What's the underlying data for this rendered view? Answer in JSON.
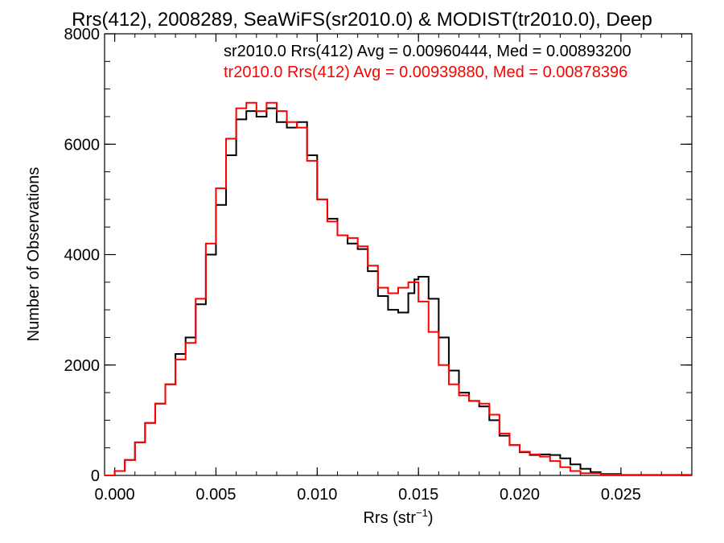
{
  "chart_data": {
    "type": "line",
    "title": "Rrs(412), 2008289, SeaWiFS(sr2010.0) & MODIST(tr2010.0), Deep",
    "xlabel": "Rrs (str",
    "xlabel_sup": "−1",
    "xlabel_close": ")",
    "ylabel": "Number of Observations",
    "xlim": [
      -0.0005,
      0.0285
    ],
    "ylim": [
      0,
      8000
    ],
    "xticks": [
      {
        "value": 0.0,
        "label": "0.000"
      },
      {
        "value": 0.005,
        "label": "0.005"
      },
      {
        "value": 0.01,
        "label": "0.010"
      },
      {
        "value": 0.015,
        "label": "0.015"
      },
      {
        "value": 0.02,
        "label": "0.020"
      },
      {
        "value": 0.025,
        "label": "0.025"
      }
    ],
    "yticks": [
      {
        "value": 0,
        "label": "0"
      },
      {
        "value": 2000,
        "label": "2000"
      },
      {
        "value": 4000,
        "label": "4000"
      },
      {
        "value": 6000,
        "label": "6000"
      },
      {
        "value": 8000,
        "label": "8000"
      }
    ],
    "legend_placement": "top-right",
    "grid": false,
    "series": [
      {
        "name": "sr2010.0 Rrs(412) Avg = 0.00960444, Med = 0.00893200",
        "color": "#000000",
        "points": [
          [
            -0.0005,
            0
          ],
          [
            0.0,
            80
          ],
          [
            0.0005,
            280
          ],
          [
            0.001,
            600
          ],
          [
            0.0015,
            950
          ],
          [
            0.002,
            1300
          ],
          [
            0.0025,
            1650
          ],
          [
            0.003,
            2200
          ],
          [
            0.0035,
            2500
          ],
          [
            0.004,
            3100
          ],
          [
            0.0045,
            4000
          ],
          [
            0.005,
            4900
          ],
          [
            0.0055,
            5800
          ],
          [
            0.006,
            6450
          ],
          [
            0.0065,
            6600
          ],
          [
            0.007,
            6500
          ],
          [
            0.0075,
            6650
          ],
          [
            0.008,
            6400
          ],
          [
            0.0085,
            6300
          ],
          [
            0.009,
            6400
          ],
          [
            0.0095,
            5800
          ],
          [
            0.01,
            5000
          ],
          [
            0.0105,
            4650
          ],
          [
            0.011,
            4350
          ],
          [
            0.0115,
            4200
          ],
          [
            0.012,
            4100
          ],
          [
            0.0125,
            3700
          ],
          [
            0.013,
            3250
          ],
          [
            0.0135,
            3000
          ],
          [
            0.014,
            2950
          ],
          [
            0.0145,
            3300
          ],
          [
            0.0148,
            3550
          ],
          [
            0.015,
            3600
          ],
          [
            0.0155,
            3200
          ],
          [
            0.016,
            2500
          ],
          [
            0.0165,
            1900
          ],
          [
            0.017,
            1500
          ],
          [
            0.0175,
            1350
          ],
          [
            0.018,
            1250
          ],
          [
            0.0185,
            1000
          ],
          [
            0.019,
            720
          ],
          [
            0.0195,
            550
          ],
          [
            0.02,
            420
          ],
          [
            0.0205,
            370
          ],
          [
            0.021,
            380
          ],
          [
            0.0215,
            370
          ],
          [
            0.022,
            310
          ],
          [
            0.0225,
            200
          ],
          [
            0.023,
            120
          ],
          [
            0.0235,
            60
          ],
          [
            0.024,
            25
          ],
          [
            0.025,
            10
          ],
          [
            0.0285,
            0
          ]
        ]
      },
      {
        "name": "tr2010.0 Rrs(412) Avg = 0.00939880, Med = 0.00878396",
        "color": "#ff0000",
        "points": [
          [
            -0.0005,
            0
          ],
          [
            0.0,
            80
          ],
          [
            0.0005,
            280
          ],
          [
            0.001,
            600
          ],
          [
            0.0015,
            950
          ],
          [
            0.002,
            1300
          ],
          [
            0.0025,
            1650
          ],
          [
            0.003,
            2100
          ],
          [
            0.0035,
            2400
          ],
          [
            0.004,
            3200
          ],
          [
            0.0045,
            4200
          ],
          [
            0.005,
            5200
          ],
          [
            0.0055,
            6100
          ],
          [
            0.006,
            6650
          ],
          [
            0.0065,
            6750
          ],
          [
            0.007,
            6600
          ],
          [
            0.0075,
            6750
          ],
          [
            0.008,
            6600
          ],
          [
            0.0085,
            6400
          ],
          [
            0.009,
            6300
          ],
          [
            0.0095,
            5700
          ],
          [
            0.01,
            5000
          ],
          [
            0.0105,
            4600
          ],
          [
            0.011,
            4350
          ],
          [
            0.0115,
            4300
          ],
          [
            0.012,
            4150
          ],
          [
            0.0125,
            3800
          ],
          [
            0.013,
            3400
          ],
          [
            0.0135,
            3300
          ],
          [
            0.014,
            3400
          ],
          [
            0.0145,
            3500
          ],
          [
            0.015,
            3150
          ],
          [
            0.0155,
            2600
          ],
          [
            0.016,
            2000
          ],
          [
            0.0165,
            1650
          ],
          [
            0.017,
            1450
          ],
          [
            0.0175,
            1350
          ],
          [
            0.018,
            1300
          ],
          [
            0.0185,
            1100
          ],
          [
            0.019,
            760
          ],
          [
            0.0195,
            550
          ],
          [
            0.02,
            430
          ],
          [
            0.0205,
            380
          ],
          [
            0.021,
            340
          ],
          [
            0.0215,
            260
          ],
          [
            0.022,
            150
          ],
          [
            0.0225,
            80
          ],
          [
            0.023,
            40
          ],
          [
            0.024,
            15
          ],
          [
            0.025,
            5
          ],
          [
            0.0285,
            0
          ]
        ]
      }
    ]
  }
}
